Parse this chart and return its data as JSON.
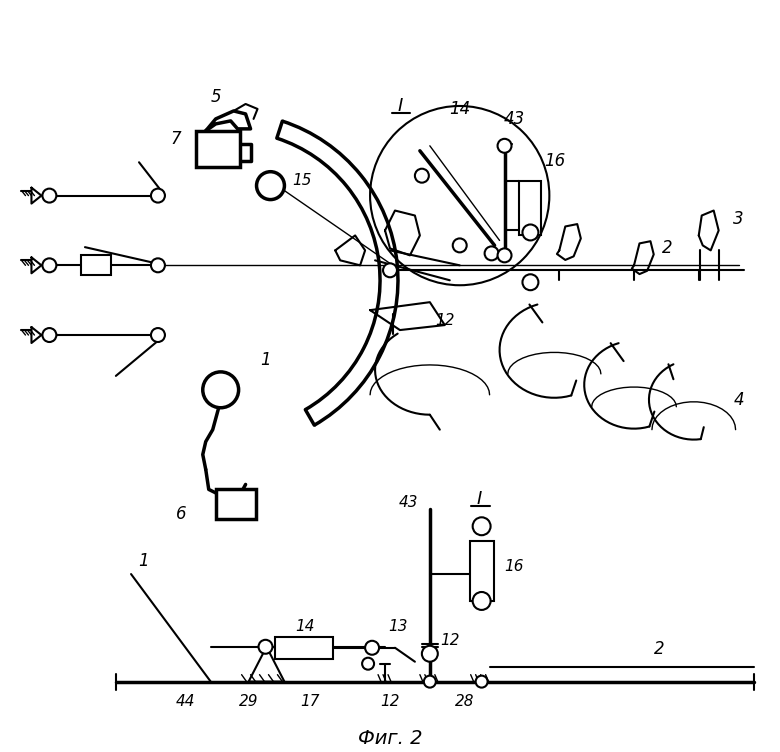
{
  "figsize": [
    7.8,
    7.52
  ],
  "dpi": 100,
  "bg_color": "#ffffff",
  "lw_thin": 1.0,
  "lw_med": 1.5,
  "lw_thick": 2.5,
  "caption": "Фиг. 2"
}
